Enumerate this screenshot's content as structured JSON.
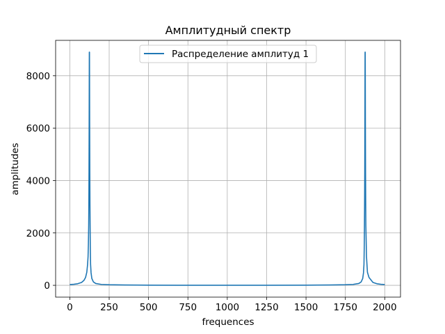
{
  "chart_data": {
    "type": "line",
    "title": "Амплитудный спектр",
    "xlabel": "frequences",
    "ylabel": "amplitudes",
    "xlim": [
      -90,
      2100
    ],
    "ylim": [
      -450,
      9350
    ],
    "grid": true,
    "legend_position": "top-center",
    "x_ticks": [
      0,
      250,
      500,
      750,
      1000,
      1250,
      1500,
      1750,
      2000
    ],
    "x_tick_labels": [
      "0",
      "250",
      "500",
      "750",
      "1000",
      "1250",
      "1500",
      "1750",
      "2000"
    ],
    "y_ticks": [
      0,
      2000,
      4000,
      6000,
      8000
    ],
    "y_tick_labels": [
      "0",
      "2000",
      "4000",
      "6000",
      "8000"
    ],
    "series": [
      {
        "name": "Распределение амплитуд 1",
        "color": "#1f77b4",
        "x": [
          0,
          25,
          50,
          75,
          90,
          100,
          108,
          113,
          116,
          118,
          120,
          121,
          122,
          123,
          124,
          125,
          126,
          127,
          128,
          129,
          130,
          132,
          135,
          140,
          150,
          165,
          200,
          250,
          350,
          500,
          750,
          1000,
          1250,
          1500,
          1650,
          1750,
          1800,
          1835,
          1850,
          1860,
          1865,
          1868,
          1870,
          1871,
          1872,
          1873,
          1874,
          1875,
          1876,
          1877,
          1878,
          1879,
          1880,
          1884,
          1890,
          1900,
          1925,
          1950,
          1975,
          2000
        ],
        "y": [
          30,
          40,
          60,
          110,
          190,
          300,
          500,
          800,
          1100,
          1550,
          2300,
          3100,
          4300,
          6200,
          8900,
          8900,
          6200,
          4300,
          3100,
          2300,
          1550,
          800,
          480,
          260,
          130,
          70,
          35,
          22,
          12,
          6,
          3,
          2,
          3,
          6,
          12,
          22,
          35,
          70,
          130,
          260,
          480,
          800,
          1550,
          2300,
          3100,
          4300,
          6200,
          8900,
          8900,
          6200,
          4300,
          3100,
          2300,
          1100,
          500,
          300,
          110,
          60,
          40,
          30
        ]
      }
    ]
  }
}
